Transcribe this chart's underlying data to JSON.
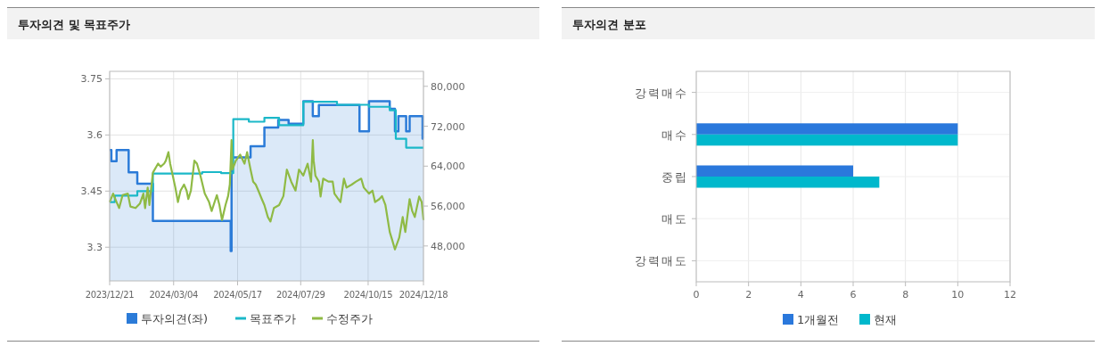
{
  "chart_data": [
    {
      "type": "line",
      "title": "투자의견 및 목표주가",
      "xlim": [
        "2023-12-21",
        "2024-12-18"
      ],
      "xticks": [
        {
          "value": "2023-12-21",
          "label": "2023/12/21"
        },
        {
          "value": "2024-03-04",
          "label": "2024/03/04"
        },
        {
          "value": "2024-05-17",
          "label": "2024/05/17"
        },
        {
          "value": "2024-07-29",
          "label": "2024/07/29"
        },
        {
          "value": "2024-10-15",
          "label": "2024/10/15"
        },
        {
          "value": "2024-12-18",
          "label": "2024/12/18"
        }
      ],
      "ylim": [
        3.21,
        3.77
      ],
      "yticks": [
        3.3,
        3.45,
        3.6,
        3.75
      ],
      "y2lim": [
        41000,
        83000
      ],
      "y2ticks": [
        {
          "value": 48000,
          "label": "48,000"
        },
        {
          "value": 56000,
          "label": "56,000"
        },
        {
          "value": 64000,
          "label": "64,000"
        },
        {
          "value": 72000,
          "label": "72,000"
        },
        {
          "value": 80000,
          "label": "80,000"
        }
      ],
      "grid": true,
      "legend": "bottom",
      "series": [
        {
          "name": "투자의견(좌)",
          "type": "area",
          "color": "#2b7bd8",
          "x": [
            "2023-12-21",
            "2023-12-23",
            "2023-12-23",
            "2023-12-29",
            "2023-12-29",
            "2024-01-12",
            "2024-01-12",
            "2024-01-22",
            "2024-01-22",
            "2024-02-09",
            "2024-02-09",
            "2024-05-09",
            "2024-05-09",
            "2024-05-10",
            "2024-05-10",
            "2024-06-01",
            "2024-06-01",
            "2024-06-17",
            "2024-06-17",
            "2024-07-03",
            "2024-07-03",
            "2024-07-15",
            "2024-07-15",
            "2024-08-01",
            "2024-08-01",
            "2024-08-12",
            "2024-08-12",
            "2024-08-19",
            "2024-08-19",
            "2024-10-05",
            "2024-10-05",
            "2024-10-16",
            "2024-10-16",
            "2024-11-09",
            "2024-11-09",
            "2024-11-15",
            "2024-11-15",
            "2024-11-19",
            "2024-11-19",
            "2024-11-28",
            "2024-11-28",
            "2024-12-02",
            "2024-12-02",
            "2024-12-17",
            "2024-12-17",
            "2024-12-18"
          ],
          "values": [
            3.56,
            3.56,
            3.53,
            3.53,
            3.56,
            3.56,
            3.5,
            3.5,
            3.47,
            3.47,
            3.37,
            3.37,
            3.29,
            3.29,
            3.54,
            3.54,
            3.57,
            3.57,
            3.62,
            3.62,
            3.64,
            3.64,
            3.63,
            3.63,
            3.69,
            3.69,
            3.65,
            3.65,
            3.68,
            3.68,
            3.61,
            3.61,
            3.69,
            3.69,
            3.67,
            3.67,
            3.61,
            3.61,
            3.65,
            3.65,
            3.61,
            3.61,
            3.65,
            3.65,
            3.59,
            3.59
          ]
        },
        {
          "name": "목표주가",
          "type": "step",
          "axis": "y2",
          "color": "#1bb8c8",
          "x": [
            "2023-12-21",
            "2023-12-27",
            "2024-01-22",
            "2024-02-09",
            "2024-04-06",
            "2024-04-28",
            "2024-05-12",
            "2024-05-30",
            "2024-06-17",
            "2024-07-04",
            "2024-08-01",
            "2024-09-09",
            "2024-10-16",
            "2024-11-09",
            "2024-11-16",
            "2024-11-28",
            "2024-12-18"
          ],
          "values": [
            56800,
            58100,
            59000,
            62500,
            62800,
            62600,
            73400,
            72900,
            73700,
            72200,
            76900,
            76300,
            75900,
            75200,
            69500,
            67700,
            67700
          ]
        },
        {
          "name": "수정주가",
          "type": "line",
          "axis": "y2",
          "color": "#8fba45",
          "x": [
            "2023-12-21",
            "2023-12-25",
            "2023-12-29",
            "2024-01-01",
            "2024-01-05",
            "2024-01-11",
            "2024-01-14",
            "2024-01-20",
            "2024-01-25",
            "2024-01-29",
            "2024-01-31",
            "2024-02-03",
            "2024-02-05",
            "2024-02-09",
            "2024-02-15",
            "2024-02-18",
            "2024-02-22",
            "2024-02-24",
            "2024-02-27",
            "2024-02-29",
            "2024-03-06",
            "2024-03-09",
            "2024-03-12",
            "2024-03-16",
            "2024-03-19",
            "2024-03-21",
            "2024-03-24",
            "2024-03-28",
            "2024-03-31",
            "2024-04-04",
            "2024-04-09",
            "2024-04-14",
            "2024-04-17",
            "2024-04-23",
            "2024-04-26",
            "2024-04-29",
            "2024-05-03",
            "2024-05-06",
            "2024-05-08",
            "2024-05-10",
            "2024-05-11",
            "2024-05-15",
            "2024-05-20",
            "2024-05-25",
            "2024-05-28",
            "2024-06-01",
            "2024-06-04",
            "2024-06-07",
            "2024-06-10",
            "2024-06-14",
            "2024-06-17",
            "2024-06-21",
            "2024-06-24",
            "2024-06-28",
            "2024-07-04",
            "2024-07-09",
            "2024-07-13",
            "2024-07-18",
            "2024-07-23",
            "2024-07-27",
            "2024-08-01",
            "2024-08-06",
            "2024-08-10",
            "2024-08-12",
            "2024-08-13",
            "2024-08-15",
            "2024-08-19",
            "2024-08-21",
            "2024-08-24",
            "2024-08-30",
            "2024-09-04",
            "2024-09-06",
            "2024-09-13",
            "2024-09-17",
            "2024-09-20",
            "2024-09-26",
            "2024-10-01",
            "2024-10-07",
            "2024-10-10",
            "2024-10-16",
            "2024-10-20",
            "2024-10-23",
            "2024-10-28",
            "2024-10-31",
            "2024-11-04",
            "2024-11-09",
            "2024-11-12",
            "2024-11-15",
            "2024-11-20",
            "2024-11-24",
            "2024-11-27",
            "2024-12-02",
            "2024-12-05",
            "2024-12-08",
            "2024-12-13",
            "2024-12-16",
            "2024-12-18"
          ],
          "values": [
            56800,
            58500,
            56800,
            55600,
            58200,
            58500,
            55900,
            55600,
            56500,
            58500,
            55600,
            59700,
            56200,
            62700,
            64500,
            63900,
            64500,
            65100,
            66800,
            64500,
            59700,
            56800,
            59100,
            60300,
            59100,
            57400,
            59100,
            65100,
            64500,
            62100,
            58500,
            56800,
            55000,
            58200,
            56200,
            53200,
            56200,
            58000,
            60300,
            69200,
            63300,
            65100,
            66300,
            64500,
            66800,
            63300,
            60900,
            60300,
            59100,
            57400,
            56200,
            53800,
            52900,
            55600,
            56200,
            58000,
            63300,
            60900,
            59100,
            63300,
            62100,
            64500,
            60900,
            69200,
            65100,
            62100,
            60900,
            57900,
            61500,
            60900,
            60900,
            58500,
            56800,
            61500,
            59700,
            60300,
            60900,
            61500,
            59700,
            58500,
            59100,
            56800,
            57400,
            58000,
            56200,
            50800,
            49100,
            47300,
            49700,
            53800,
            50800,
            57400,
            55000,
            53800,
            57900,
            56800,
            53200
          ]
        }
      ]
    },
    {
      "type": "bar",
      "title": "투자의견 분포",
      "orientation": "horizontal",
      "categories": [
        "강력매수",
        "매수",
        "중립",
        "매도",
        "강력매도"
      ],
      "xlim": [
        0,
        12
      ],
      "xticks": [
        0,
        2,
        4,
        6,
        8,
        10,
        12
      ],
      "grid": true,
      "legend": "bottom",
      "series": [
        {
          "name": "1개월전",
          "color": "#2a78dc",
          "values": [
            0,
            10,
            6,
            0,
            0
          ]
        },
        {
          "name": "현재",
          "color": "#00b8cc",
          "values": [
            0,
            10,
            7,
            0,
            0
          ]
        }
      ]
    }
  ]
}
